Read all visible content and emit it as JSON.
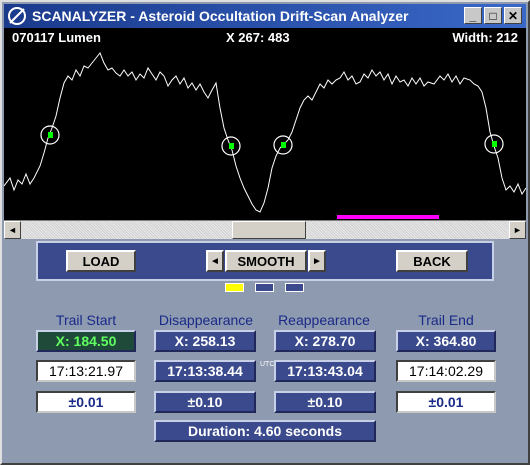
{
  "window": {
    "title": "SCANALYZER - Asteroid Occultation Drift-Scan Analyzer",
    "minimize": "_",
    "maximize": "□",
    "close": "✕"
  },
  "scope": {
    "left_info": "070117 Lumen",
    "center_info": "X 267: 483",
    "right_info": "Width: 212",
    "trace_color": "#ffffff",
    "marker_color": "#00ff00",
    "range_color": "#ff00ff"
  },
  "toolbar": {
    "load": "LOAD",
    "smooth": "SMOOTH",
    "back": "BACK",
    "left_arrow": "◄",
    "right_arrow": "►"
  },
  "indicators": [
    {
      "color": "#ffff00"
    },
    {
      "color": "#3a4a8c"
    },
    {
      "color": "#3a4a8c"
    }
  ],
  "columns": {
    "trail_start": {
      "heading": "Trail Start",
      "x": "X:  184.50",
      "time": "17:13:21.97",
      "err": "±0.01"
    },
    "disappearance": {
      "heading": "Disappearance",
      "x": "X:  258.13",
      "time": "17:13:38.44",
      "err": "±0.10"
    },
    "reappearance": {
      "heading": "Reappearance",
      "x": "X:  278.70",
      "time": "17:13:43.04",
      "err": "±0.10"
    },
    "trail_end": {
      "heading": "Trail End",
      "x": "X:  364.80",
      "time": "17:14:02.29",
      "err": "±0.01"
    }
  },
  "utc_label": "UTC",
  "duration": "Duration:  4.60  seconds"
}
